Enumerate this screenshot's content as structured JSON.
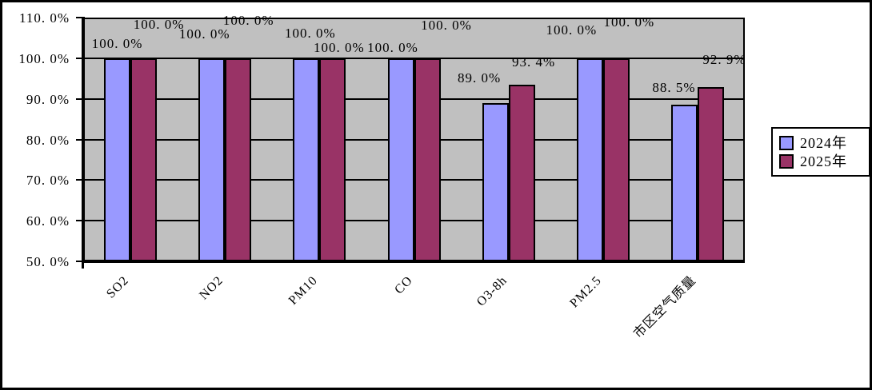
{
  "chart_data": {
    "type": "bar",
    "title": "",
    "categories": [
      "SO2",
      "NO2",
      "PM10",
      "CO",
      "O3-8h",
      "PM2.5",
      "市区空气质量"
    ],
    "series": [
      {
        "name": "2024年",
        "color": "#9999FF",
        "values": [
          100.0,
          100.0,
          100.0,
          100.0,
          89.0,
          100.0,
          88.5
        ],
        "labels": [
          "100. 0%",
          "100. 0%",
          "100. 0%",
          "100. 0%",
          "89. 0%",
          "100. 0%",
          "88. 5%"
        ],
        "label_offsets": [
          [
            0,
            19
          ],
          [
            -9,
            31
          ],
          [
            5,
            32
          ],
          [
            -10,
            14
          ],
          [
            -20,
            32
          ],
          [
            -23,
            36
          ],
          [
            -13,
            22
          ]
        ]
      },
      {
        "name": "2025年",
        "color": "#993366",
        "values": [
          100.0,
          100.0,
          100.0,
          100.0,
          93.4,
          100.0,
          92.9
        ],
        "labels": [
          "100. 0%",
          "100. 0%",
          "100. 0%",
          "100. 0%",
          "93. 4%",
          "100. 0%",
          "92. 9%"
        ],
        "label_offsets": [
          [
            19,
            43
          ],
          [
            13,
            48
          ],
          [
            8,
            14
          ],
          [
            24,
            42
          ],
          [
            15,
            29
          ],
          [
            16,
            46
          ],
          [
            17,
            35
          ]
        ]
      }
    ],
    "y_axis": {
      "min": 50,
      "max": 110,
      "step": 10,
      "format": "percent",
      "tick_labels": [
        "110. 0%",
        "100. 0%",
        "90. 0%",
        "80. 0%",
        "70. 0%",
        "60. 0%",
        "50. 0%"
      ]
    },
    "x_axis": {
      "label_rotation_deg": 45
    },
    "legend": {
      "position": "right",
      "items": [
        "2024年",
        "2025年"
      ]
    },
    "colors": {
      "plot_background": "#C0C0C0",
      "gridline": "#000000",
      "axis": "#000000",
      "text": "#000000",
      "outer_background": "#FFFFFF"
    },
    "gridlines": true
  }
}
